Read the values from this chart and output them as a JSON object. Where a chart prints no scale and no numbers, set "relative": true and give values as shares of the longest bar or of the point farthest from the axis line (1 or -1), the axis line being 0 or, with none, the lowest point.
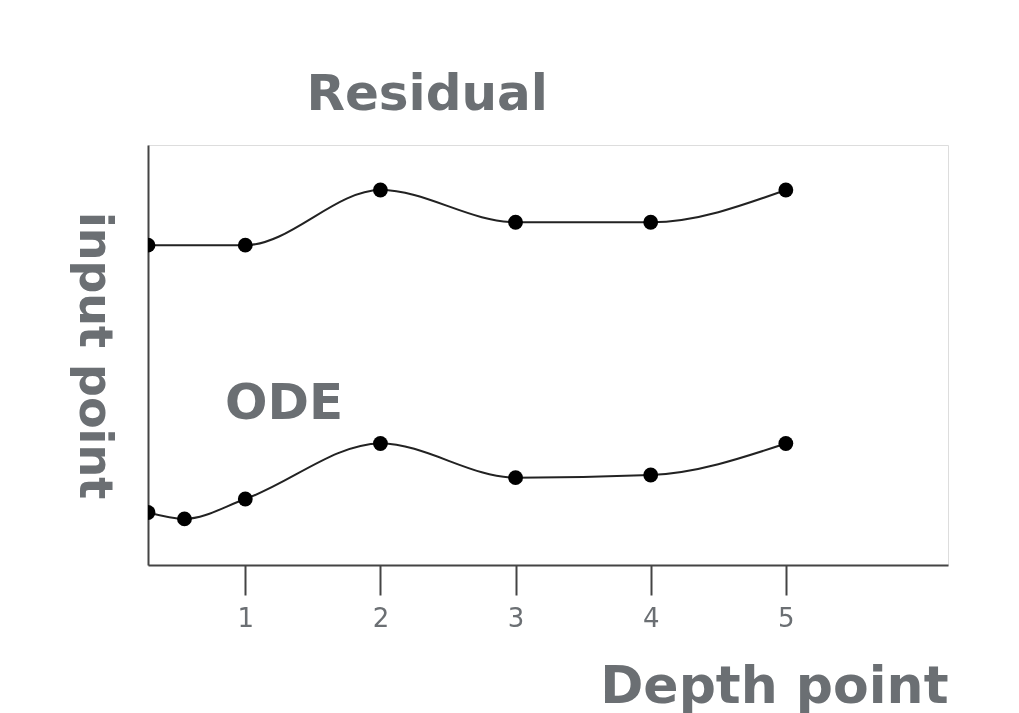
{
  "chart_data": {
    "type": "line",
    "relative": true,
    "xlabel": "Depth point",
    "ylabel": "input point",
    "xlim": [
      0.28,
      6.2
    ],
    "xticks": [
      1,
      2,
      3,
      4,
      5
    ],
    "grid": false,
    "marker": "circle",
    "line_style": "solid",
    "series": [
      {
        "name": "Residual",
        "color": "#222222",
        "x": [
          0.28,
          1,
          2,
          3,
          4,
          5
        ],
        "values": [
          0.853,
          0.853,
          1,
          0.914,
          0.914,
          1
        ]
      },
      {
        "name": "ODE",
        "color": "#222222",
        "x": [
          0.28,
          0.55,
          1,
          2,
          3,
          4,
          5
        ],
        "values": [
          0.14,
          0.123,
          0.176,
          0.324,
          0.233,
          0.24,
          0.324
        ]
      }
    ]
  }
}
